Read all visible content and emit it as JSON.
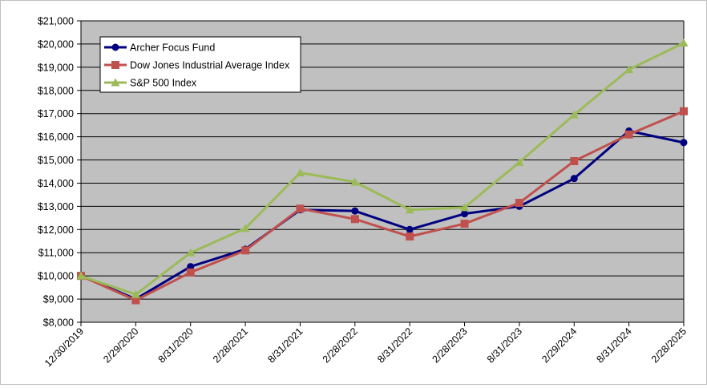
{
  "chart_data": {
    "type": "line",
    "categories": [
      "12/30/2019",
      "2/29/2020",
      "8/31/2020",
      "2/28/2021",
      "8/31/2021",
      "2/28/2022",
      "8/31/2022",
      "2/28/2023",
      "8/31/2023",
      "2/29/2024",
      "8/31/2024",
      "2/28/2025"
    ],
    "y_ticks": [
      "$8,000",
      "$9,000",
      "$10,000",
      "$11,000",
      "$12,000",
      "$13,000",
      "$14,000",
      "$15,000",
      "$16,000",
      "$17,000",
      "$18,000",
      "$19,000",
      "$20,000",
      "$21,000"
    ],
    "ylim": [
      8000,
      21000
    ],
    "grid": true,
    "plot_background": "#c0c0c0",
    "legend_position": "top-left",
    "series": [
      {
        "name": "Archer Focus Fund",
        "color": "#000080",
        "marker": "circle",
        "values": [
          10000,
          9000,
          10400,
          11150,
          12850,
          12800,
          12000,
          12680,
          13000,
          14200,
          16250,
          15750
        ]
      },
      {
        "name": "Dow Jones Industrial Average Index",
        "color": "#c0504d",
        "marker": "square",
        "values": [
          10000,
          8950,
          10150,
          11100,
          12900,
          12450,
          11700,
          12250,
          13150,
          14950,
          16100,
          17100
        ]
      },
      {
        "name": "S&P 500 Index",
        "color": "#9bbb59",
        "marker": "triangle",
        "values": [
          10000,
          9200,
          11000,
          12050,
          14450,
          14050,
          12850,
          12950,
          14900,
          16950,
          18900,
          20050
        ]
      }
    ]
  }
}
